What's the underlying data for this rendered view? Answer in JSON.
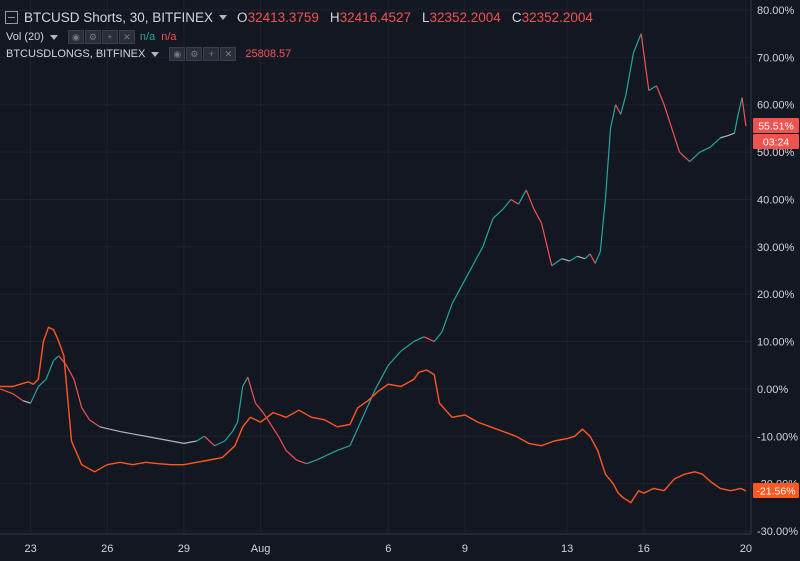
{
  "legend": {
    "symbol_title": "BTCUSD Shorts, 30, BITFINEX",
    "ohlc": [
      {
        "key": "O",
        "value": "32413.3759"
      },
      {
        "key": "H",
        "value": "32416.4527"
      },
      {
        "key": "L",
        "value": "32352.2004"
      },
      {
        "key": "C",
        "value": "32352.2004"
      }
    ],
    "vol_label": "Vol (20)",
    "vol_values": [
      "n/a",
      "n/a"
    ],
    "longs_label": "BTCUSDLONGS, BITFINEX",
    "longs_value": "25808.57"
  },
  "controls": {
    "icons": [
      "eye-icon",
      "settings-icon",
      "add-icon",
      "close-icon"
    ]
  },
  "colors": {
    "background": "#131722",
    "grid": "#1e222d",
    "up": "#26a69a",
    "down": "#ef5350",
    "longs": "#ff5722",
    "shorts_neutral": "#b2b5be",
    "axis_text": "#d1d4dc",
    "badge_shorts": "#ef5350",
    "badge_longs": "#ff5722"
  },
  "chart_data": {
    "type": "line",
    "title": "BTCUSD Shorts, 30, BITFINEX",
    "xlabel": "",
    "ylabel": "",
    "x_ticks": [
      "23",
      "26",
      "29",
      "Aug",
      "6",
      "9",
      "13",
      "16",
      "20"
    ],
    "y_ticks": [
      "80.00%",
      "70.00%",
      "60.00%",
      "50.00%",
      "40.00%",
      "30.00%",
      "20.00%",
      "10.00%",
      "0.00%",
      "-10.00%",
      "-20.00%",
      "-30.00%"
    ],
    "y_tick_values": [
      80,
      70,
      60,
      50,
      40,
      30,
      20,
      10,
      0,
      -10,
      -20,
      -30
    ],
    "ylim": [
      -30,
      80
    ],
    "x_day_range": [
      21.8,
      51.2
    ],
    "x_tick_days": [
      23,
      26,
      29,
      32,
      37,
      40,
      44,
      47,
      51
    ],
    "grid": true,
    "series": [
      {
        "name": "BTCUSD Shorts",
        "style": "candles",
        "day": [
          21.8,
          22.3,
          22.7,
          23.0,
          23.3,
          23.6,
          23.9,
          24.1,
          24.4,
          24.7,
          25.0,
          25.3,
          25.7,
          26.1,
          26.5,
          27.0,
          27.5,
          28.0,
          28.5,
          29.0,
          29.5,
          29.8,
          30.2,
          30.6,
          30.9,
          31.1,
          31.3,
          31.5,
          31.8,
          32.1,
          32.4,
          32.7,
          33.0,
          33.4,
          33.8,
          34.2,
          34.6,
          35.0,
          35.5,
          36.0,
          36.5,
          37.0,
          37.5,
          38.0,
          38.4,
          38.8,
          39.1,
          39.5,
          39.9,
          40.3,
          40.7,
          41.1,
          41.5,
          41.8,
          42.1,
          42.4,
          42.7,
          43.0,
          43.4,
          43.8,
          44.1,
          44.4,
          44.7,
          44.9,
          45.1,
          45.3,
          45.5,
          45.7,
          45.9,
          46.1,
          46.3,
          46.6,
          46.9,
          47.2,
          47.5,
          47.8,
          48.1,
          48.4,
          48.8,
          49.2,
          49.6,
          50.0,
          50.3,
          50.55,
          50.7,
          50.85,
          51.0
        ],
        "values": [
          0.0,
          -1.0,
          -2.5,
          -3.0,
          0.5,
          2.0,
          6.0,
          7.0,
          5.0,
          2.0,
          -4.0,
          -6.5,
          -8.0,
          -8.5,
          -9.0,
          -9.5,
          -10.0,
          -10.5,
          -11.0,
          -11.5,
          -11.0,
          -10.0,
          -12.0,
          -11.0,
          -9.0,
          -7.0,
          0.5,
          2.5,
          -3.0,
          -5.0,
          -7.5,
          -10.0,
          -13.0,
          -15.0,
          -15.8,
          -15.0,
          -14.0,
          -13.0,
          -12.0,
          -6.0,
          0.0,
          5.0,
          8.0,
          10.0,
          11.0,
          10.0,
          12.0,
          18.0,
          22.0,
          26.0,
          30.0,
          36.0,
          38.0,
          40.0,
          39.0,
          42.0,
          38.0,
          35.0,
          26.0,
          27.5,
          27.0,
          28.0,
          27.5,
          28.5,
          26.5,
          29.0,
          40.0,
          55.0,
          60.0,
          58.0,
          62.0,
          71.0,
          75.0,
          63.0,
          64.0,
          60.0,
          55.0,
          50.0,
          48.0,
          50.0,
          51.0,
          53.0,
          53.5,
          54.0,
          58.0,
          61.5,
          55.51
        ]
      },
      {
        "name": "BTCUSDLONGS",
        "style": "line",
        "day": [
          21.8,
          22.3,
          22.6,
          22.9,
          23.1,
          23.3,
          23.5,
          23.7,
          23.9,
          24.1,
          24.3,
          24.6,
          25.0,
          25.5,
          26.0,
          26.5,
          27.0,
          27.5,
          28.0,
          28.5,
          29.0,
          29.5,
          30.0,
          30.5,
          31.0,
          31.3,
          31.6,
          32.0,
          32.5,
          33.0,
          33.5,
          34.0,
          34.5,
          35.0,
          35.5,
          35.8,
          36.2,
          36.6,
          37.0,
          37.5,
          38.0,
          38.2,
          38.5,
          38.8,
          39.0,
          39.5,
          40.0,
          40.5,
          41.0,
          41.5,
          42.0,
          42.5,
          43.0,
          43.5,
          44.0,
          44.3,
          44.6,
          44.9,
          45.2,
          45.5,
          45.8,
          46.0,
          46.2,
          46.5,
          46.8,
          47.0,
          47.4,
          47.8,
          48.2,
          48.6,
          49.0,
          49.3,
          49.6,
          50.0,
          50.4,
          50.8,
          51.0
        ],
        "values": [
          0.5,
          0.5,
          1.0,
          1.5,
          1.0,
          2.0,
          10.0,
          13.0,
          12.5,
          10.0,
          7.0,
          -11.0,
          -16.0,
          -17.5,
          -16.0,
          -15.5,
          -16.0,
          -15.5,
          -15.8,
          -16.0,
          -16.0,
          -15.5,
          -15.0,
          -14.5,
          -12.0,
          -8.0,
          -6.0,
          -7.0,
          -5.0,
          -6.0,
          -4.5,
          -6.0,
          -6.5,
          -8.0,
          -7.5,
          -4.0,
          -2.5,
          -0.5,
          1.0,
          0.5,
          2.0,
          3.5,
          4.0,
          3.0,
          -3.0,
          -6.0,
          -5.5,
          -7.0,
          -8.0,
          -9.0,
          -10.0,
          -11.5,
          -12.0,
          -11.0,
          -10.5,
          -10.0,
          -8.5,
          -10.0,
          -13.0,
          -18.0,
          -20.0,
          -22.0,
          -23.0,
          -24.0,
          -21.5,
          -22.0,
          -21.0,
          -21.5,
          -19.0,
          -18.0,
          -17.5,
          -18.0,
          -19.5,
          -21.0,
          -21.5,
          -21.0,
          -21.56
        ]
      }
    ],
    "badges": [
      {
        "series": "BTCUSD Shorts",
        "label": "55.51%",
        "value": 55.51,
        "sub_label": "03:24"
      },
      {
        "series": "BTCUSDLONGS",
        "label": "-21.56%",
        "value": -21.56
      }
    ]
  }
}
